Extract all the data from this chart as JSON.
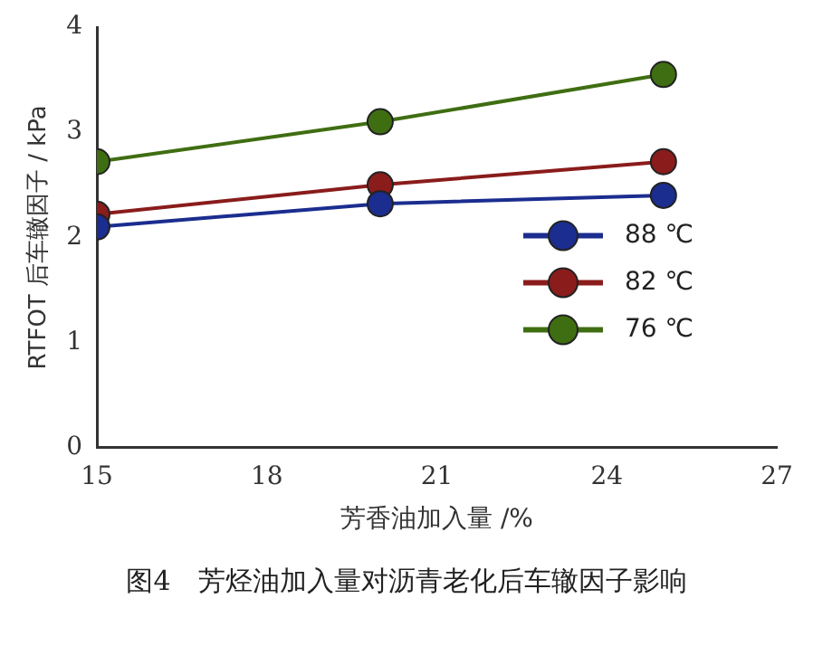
{
  "chart_data": {
    "type": "line",
    "xlabel": "芳香油加入量 /%",
    "ylabel": "RTFOT 后车辙因子 / kPa",
    "x": [
      15,
      20,
      25
    ],
    "series": [
      {
        "name": "88 ℃",
        "color": "#1b2d8f",
        "values": [
          2.1,
          2.32,
          2.4
        ]
      },
      {
        "name": "82 ℃",
        "color": "#8a1c1c",
        "values": [
          2.22,
          2.5,
          2.72
        ]
      },
      {
        "name": "76 ℃",
        "color": "#3f6e12",
        "values": [
          2.72,
          3.1,
          3.55
        ]
      }
    ],
    "xlim": [
      15,
      27
    ],
    "xticks": [
      15,
      18,
      21,
      24,
      27
    ],
    "ylim": [
      0,
      4
    ],
    "yticks": [
      0,
      1,
      2,
      3,
      4
    ],
    "grid": false,
    "legend": "center right",
    "marker": "circle",
    "line_style": "solid",
    "annotations": [
      "图4　芳烃油加入量对沥青老化后车辙因子影响"
    ]
  }
}
